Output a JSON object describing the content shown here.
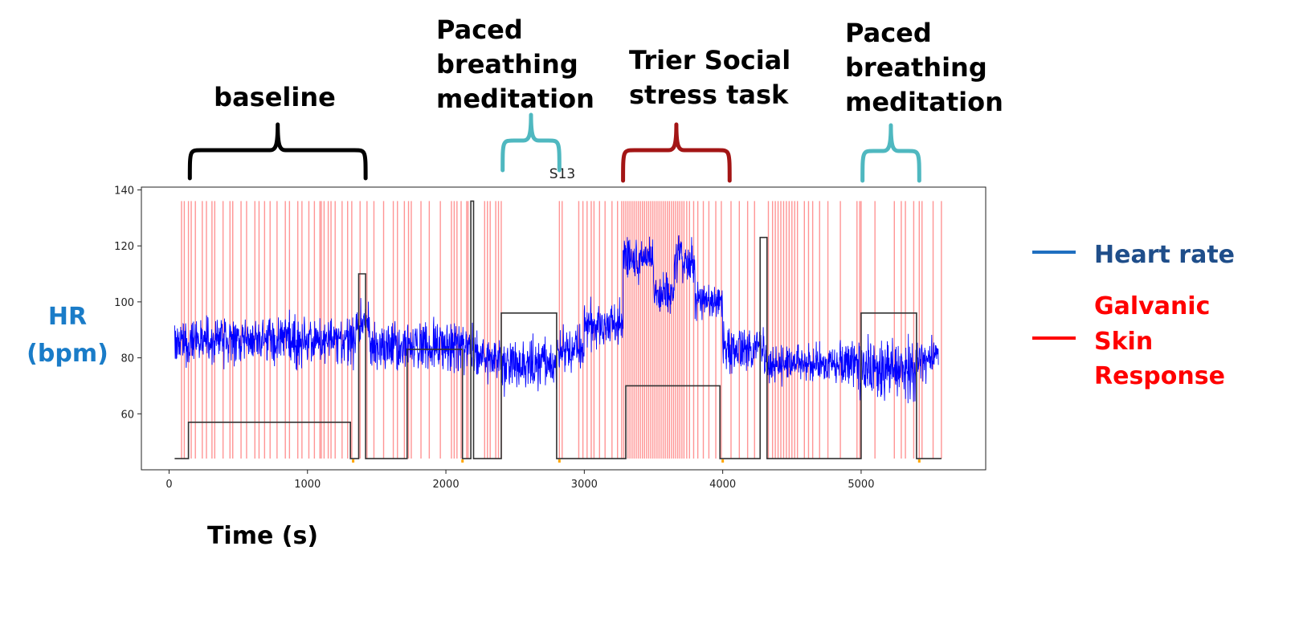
{
  "chart_data": {
    "type": "line",
    "title": "S13",
    "xlabel": "Time (s)",
    "ylabel": "HR (bpm)",
    "xlim": [
      -200,
      5900
    ],
    "ylim": [
      40,
      141
    ],
    "x_ticks": [
      0,
      1000,
      2000,
      3000,
      4000,
      5000
    ],
    "y_ticks": [
      60,
      80,
      100,
      120,
      140
    ],
    "grid": false,
    "legend": {
      "position": "right",
      "entries": [
        {
          "label": "Heart rate",
          "color": "#1f6fc0"
        },
        {
          "label": "Galvanic Skin Response",
          "color": "#ff0000"
        }
      ]
    },
    "colors": {
      "heart_rate": "#0000ff",
      "gsr": "#ff6666",
      "step": "#333333",
      "baseline_brace": "#000000",
      "meditation_brace": "#4fb8c0",
      "stress_brace": "#a31515",
      "ylabel": "#1a7cc8",
      "legend_hr": "#1f4e8a",
      "legend_gsr": "#ff0000",
      "marker": "#ffa500"
    },
    "heart_rate_segments": [
      {
        "x": [
          40,
          1350
        ],
        "mean": 86,
        "amplitude": 12
      },
      {
        "x": [
          1350,
          1450
        ],
        "mean": 92,
        "amplitude": 11
      },
      {
        "x": [
          1450,
          2200
        ],
        "mean": 84,
        "amplitude": 13
      },
      {
        "x": [
          2200,
          2400
        ],
        "mean": 80,
        "amplitude": 12
      },
      {
        "x": [
          2400,
          2800
        ],
        "mean": 77,
        "amplitude": 14
      },
      {
        "x": [
          2800,
          3000
        ],
        "mean": 83,
        "amplitude": 12
      },
      {
        "x": [
          3000,
          3280
        ],
        "mean": 92,
        "amplitude": 12
      },
      {
        "x": [
          3280,
          3500
        ],
        "mean": 115,
        "amplitude": 10
      },
      {
        "x": [
          3500,
          3650
        ],
        "mean": 102,
        "amplitude": 11
      },
      {
        "x": [
          3650,
          3800
        ],
        "mean": 115,
        "amplitude": 10
      },
      {
        "x": [
          3800,
          4000
        ],
        "mean": 100,
        "amplitude": 10
      },
      {
        "x": [
          4000,
          4300
        ],
        "mean": 83,
        "amplitude": 12
      },
      {
        "x": [
          4300,
          4980
        ],
        "mean": 78,
        "amplitude": 10
      },
      {
        "x": [
          4980,
          5400
        ],
        "mean": 75,
        "amplitude": 16
      },
      {
        "x": [
          5400,
          5560
        ],
        "mean": 80,
        "amplitude": 10
      }
    ],
    "step_line": {
      "x": [
        40,
        140,
        140,
        1310,
        1310,
        1330,
        1330,
        1370,
        1370,
        1420,
        1420,
        1720,
        1720,
        2120,
        2120,
        2180,
        2180,
        2200,
        2200,
        2400,
        2400,
        2800,
        2800,
        3300,
        3300,
        3980,
        3980,
        4270,
        4270,
        4320,
        4320,
        5000,
        5000,
        5400,
        5400,
        5580
      ],
      "y": [
        44,
        44,
        57,
        57,
        44,
        44,
        44,
        44,
        110,
        110,
        44,
        44,
        83,
        83,
        44,
        44,
        136,
        136,
        44,
        44,
        96,
        96,
        44,
        44,
        70,
        70,
        44,
        44,
        123,
        123,
        44,
        44,
        96,
        96,
        44,
        44
      ]
    },
    "gsr_events": [
      90,
      110,
      140,
      160,
      190,
      240,
      270,
      310,
      330,
      390,
      440,
      460,
      520,
      560,
      620,
      650,
      690,
      730,
      780,
      840,
      870,
      930,
      960,
      1010,
      1050,
      1090,
      1100,
      1120,
      1150,
      1170,
      1200,
      1250,
      1290,
      1320,
      1380,
      1430,
      1480,
      1550,
      1620,
      1650,
      1700,
      1730,
      1750,
      1820,
      1880,
      1960,
      2040,
      2060,
      2080,
      2110,
      2150,
      2160,
      2280,
      2300,
      2320,
      2360,
      2380,
      2400,
      2820,
      2840,
      2960,
      2990,
      3020,
      3050,
      3070,
      3110,
      3150,
      3200,
      3240,
      3270,
      3285,
      3300,
      3315,
      3330,
      3345,
      3360,
      3375,
      3390,
      3405,
      3420,
      3435,
      3450,
      3465,
      3480,
      3495,
      3510,
      3525,
      3540,
      3555,
      3570,
      3585,
      3600,
      3615,
      3630,
      3645,
      3660,
      3675,
      3690,
      3705,
      3720,
      3740,
      3760,
      3790,
      3820,
      3860,
      3900,
      3950,
      3990,
      4060,
      4120,
      4180,
      4230,
      4330,
      4360,
      4380,
      4400,
      4420,
      4440,
      4460,
      4480,
      4500,
      4520,
      4540,
      4590,
      4620,
      4650,
      4700,
      4760,
      4850,
      4970,
      4990,
      5000,
      5100,
      5240,
      5290,
      5320,
      5380,
      5420,
      5440,
      5520,
      5580
    ],
    "markers_x": [
      1330,
      2120,
      2820,
      4000,
      5420
    ],
    "annotations": [
      {
        "label": "baseline",
        "lines": [
          "baseline"
        ],
        "x_start": 150,
        "x_end": 1420,
        "brace": "baseline_brace"
      },
      {
        "label": "Paced breathing meditation",
        "lines": [
          "Paced",
          "breathing",
          "meditation"
        ],
        "x_start": 2410,
        "x_end": 2820,
        "brace": "meditation_brace"
      },
      {
        "label": "Trier Social stress task",
        "lines": [
          "Trier Social",
          "stress task"
        ],
        "x_start": 3280,
        "x_end": 4050,
        "brace": "stress_brace"
      },
      {
        "label": "Paced breathing meditation",
        "lines": [
          "Paced",
          "breathing",
          "meditation"
        ],
        "x_start": 5010,
        "x_end": 5420,
        "brace": "meditation_brace"
      }
    ]
  }
}
